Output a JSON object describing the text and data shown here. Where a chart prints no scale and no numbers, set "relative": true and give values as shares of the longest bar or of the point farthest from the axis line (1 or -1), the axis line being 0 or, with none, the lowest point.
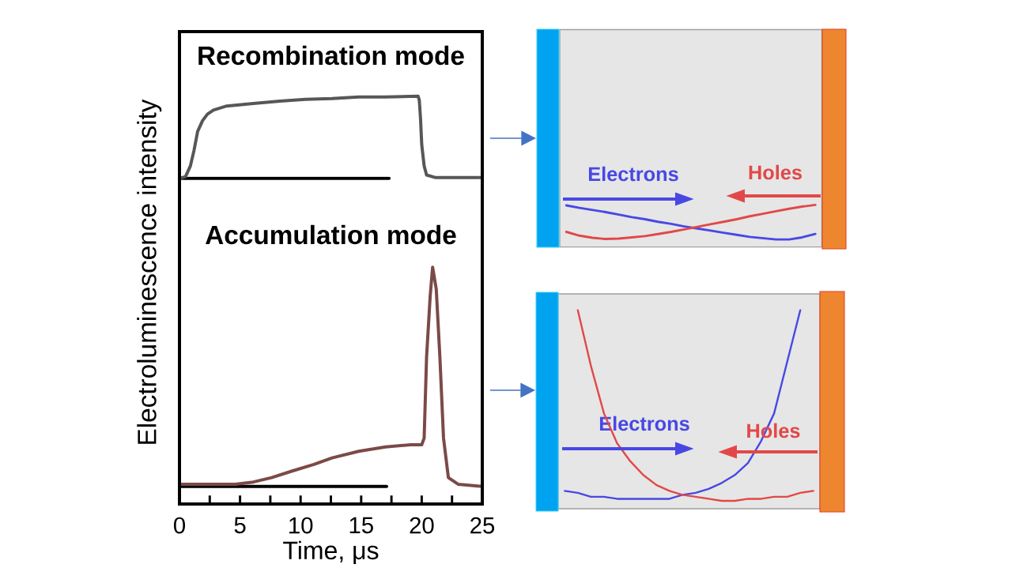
{
  "chart_data": [
    {
      "type": "line",
      "title": "Recombination mode",
      "relative": true,
      "xlim": [
        0,
        25
      ],
      "tick_labels": false,
      "series": [
        {
          "color": "#000000",
          "x": [
            0,
            17.3
          ],
          "values": [
            0,
            0
          ]
        },
        {
          "color": "#575757",
          "x": [
            0,
            0.5,
            0.9,
            1.2,
            1.5,
            1.9,
            2.3,
            2.8,
            3.9,
            6.1,
            8.3,
            10.4,
            12.6,
            14.8,
            17.0,
            19.7,
            19.8,
            19.9,
            20.0,
            20.2,
            20.4,
            21.1,
            25.0
          ],
          "values": [
            0,
            0.02,
            0.15,
            0.34,
            0.57,
            0.7,
            0.78,
            0.83,
            0.88,
            0.91,
            0.94,
            0.96,
            0.97,
            0.99,
            0.99,
            1.0,
            0.95,
            0.73,
            0.41,
            0.15,
            0.04,
            0.01,
            0.01
          ]
        }
      ]
    },
    {
      "type": "line",
      "title": "Accumulation mode",
      "xlabel": "Time, μs",
      "ylabel": "Electroluminescence intensity",
      "relative": true,
      "xlim": [
        0,
        25
      ],
      "xticks": [
        0,
        {
          "value": 2.5,
          "label": null
        },
        5,
        {
          "value": 7.5,
          "label": null
        },
        10,
        {
          "value": 12.5,
          "label": null
        },
        15,
        {
          "value": 17.5,
          "label": null
        },
        20,
        {
          "value": 22.5,
          "label": null
        },
        25
      ],
      "series": [
        {
          "color": "#000000",
          "x": [
            0,
            17.1
          ],
          "values": [
            0,
            0
          ]
        },
        {
          "color": "#7B4A47",
          "x": [
            0,
            4.6,
            6.1,
            7.6,
            9.3,
            11.1,
            12.6,
            14.8,
            17.0,
            19.1,
            20.0,
            20.2,
            20.4,
            20.7,
            20.9,
            21.2,
            21.5,
            21.8,
            22.2,
            23.0,
            25.0
          ],
          "values": [
            0.01,
            0.01,
            0.02,
            0.04,
            0.07,
            0.1,
            0.13,
            0.16,
            0.18,
            0.19,
            0.19,
            0.22,
            0.59,
            0.87,
            1.0,
            0.9,
            0.59,
            0.22,
            0.04,
            0.01,
            0.0
          ]
        }
      ]
    },
    {
      "type": "line",
      "relative": true,
      "categories": [
        null,
        null,
        null,
        null,
        null,
        null,
        null,
        null,
        null,
        null,
        null,
        null,
        null,
        null,
        null,
        null,
        null,
        null,
        null,
        null
      ],
      "series": [
        {
          "name": "Electrons",
          "color": "#4848E4",
          "values": [
            0.99,
            0.93,
            0.88,
            0.83,
            0.77,
            0.71,
            0.66,
            0.6,
            0.55,
            0.49,
            0.44,
            0.39,
            0.34,
            0.29,
            0.24,
            0.21,
            0.18,
            0.18,
            0.23,
            0.31
          ]
        },
        {
          "name": "Holes",
          "color": "#E24848",
          "values": [
            0.36,
            0.27,
            0.22,
            0.19,
            0.2,
            0.23,
            0.26,
            0.31,
            0.36,
            0.42,
            0.48,
            0.54,
            0.6,
            0.66,
            0.73,
            0.79,
            0.85,
            0.91,
            0.96,
            1.0
          ]
        }
      ]
    },
    {
      "type": "line",
      "relative": true,
      "categories": [
        null,
        null,
        null,
        null,
        null,
        null,
        null,
        null,
        null,
        null,
        null,
        null,
        null,
        null,
        null,
        null,
        null,
        null,
        null,
        null
      ],
      "series": [
        {
          "name": "Electrons",
          "color": "#4848E4",
          "values": [
            0.09,
            0.08,
            0.06,
            0.06,
            0.05,
            0.05,
            0.05,
            0.05,
            0.05,
            0.07,
            0.08,
            0.1,
            0.13,
            0.17,
            0.23,
            0.34,
            0.48,
            0.74,
            1.0,
            null
          ]
        },
        {
          "name": "Holes",
          "color": "#E24848",
          "values": [
            null,
            1.0,
            0.72,
            0.48,
            0.33,
            0.24,
            0.17,
            0.12,
            0.09,
            0.07,
            0.06,
            0.05,
            0.04,
            0.04,
            0.05,
            0.05,
            0.06,
            0.06,
            0.08,
            0.09
          ]
        }
      ]
    }
  ]
}
